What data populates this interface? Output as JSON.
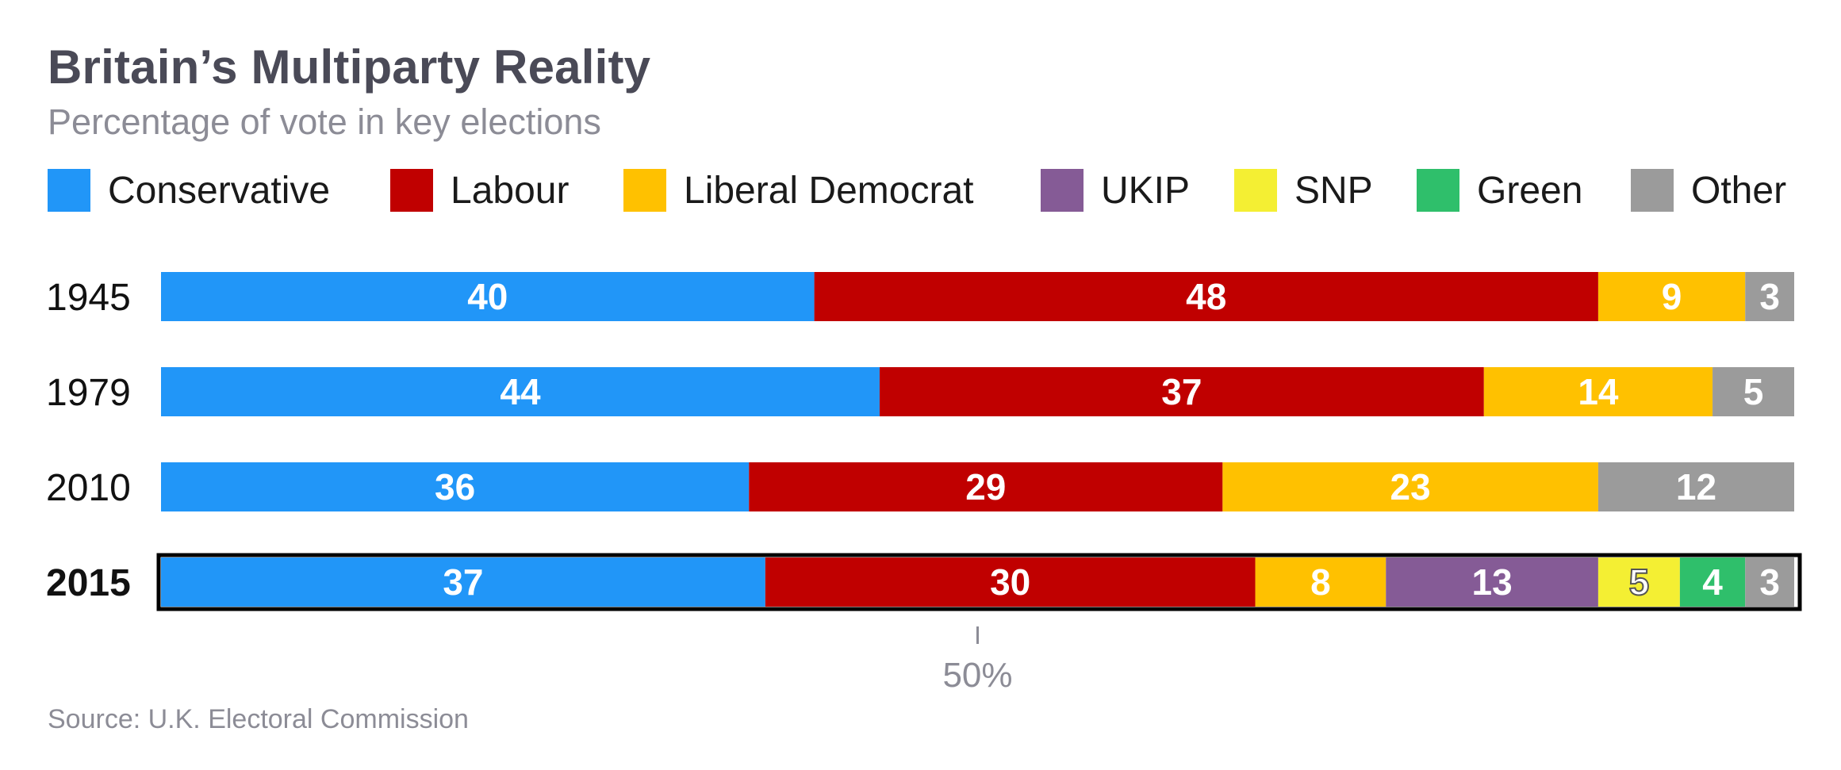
{
  "chart_data": {
    "type": "stacked-bar-horizontal",
    "title": "Britain’s Multiparty Reality",
    "subtitle": "Percentage of vote in key elections",
    "source": "Source: U.K. Electoral Commission",
    "xlim": [
      0,
      100
    ],
    "reference_tick": {
      "value": 50,
      "label": "50%"
    },
    "parties": [
      {
        "name": "Conservative",
        "color": "#2196f8"
      },
      {
        "name": "Labour",
        "color": "#c00000"
      },
      {
        "name": "Liberal Democrat",
        "color": "#ffc100"
      },
      {
        "name": "UKIP",
        "color": "#855b96"
      },
      {
        "name": "SNP",
        "color": "#f4ef33"
      },
      {
        "name": "Green",
        "color": "#2fbf6b"
      },
      {
        "name": "Other",
        "color": "#9b9b9b"
      }
    ],
    "rows": [
      {
        "year": "1945",
        "highlight": false,
        "segments": [
          {
            "party": "Conservative",
            "value": 40,
            "label": "40"
          },
          {
            "party": "Labour",
            "value": 48,
            "label": "48"
          },
          {
            "party": "Liberal Democrat",
            "value": 9,
            "label": "9"
          },
          {
            "party": "Other",
            "value": 3,
            "label": "3"
          }
        ]
      },
      {
        "year": "1979",
        "highlight": false,
        "segments": [
          {
            "party": "Conservative",
            "value": 44,
            "label": "44"
          },
          {
            "party": "Labour",
            "value": 37,
            "label": "37"
          },
          {
            "party": "Liberal Democrat",
            "value": 14,
            "label": "14"
          },
          {
            "party": "Other",
            "value": 5,
            "label": "5"
          }
        ]
      },
      {
        "year": "2010",
        "highlight": false,
        "segments": [
          {
            "party": "Conservative",
            "value": 36,
            "label": "36"
          },
          {
            "party": "Labour",
            "value": 29,
            "label": "29"
          },
          {
            "party": "Liberal Democrat",
            "value": 23,
            "label": "23"
          },
          {
            "party": "Other",
            "value": 12,
            "label": "12"
          }
        ]
      },
      {
        "year": "2015",
        "highlight": true,
        "segments": [
          {
            "party": "Conservative",
            "value": 37,
            "label": "37"
          },
          {
            "party": "Labour",
            "value": 30,
            "label": "30"
          },
          {
            "party": "Liberal Democrat",
            "value": 8,
            "label": "8"
          },
          {
            "party": "UKIP",
            "value": 13,
            "label": "13"
          },
          {
            "party": "SNP",
            "value": 5,
            "label": "5"
          },
          {
            "party": "Green",
            "value": 4,
            "label": "4"
          },
          {
            "party": "Other",
            "value": 3,
            "label": "3"
          }
        ]
      }
    ]
  }
}
